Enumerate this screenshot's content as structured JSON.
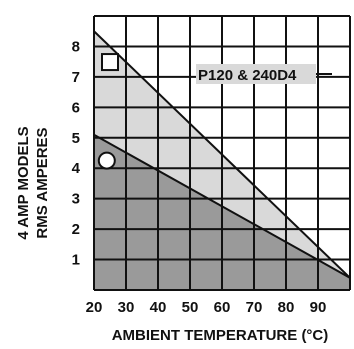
{
  "chart_data": {
    "type": "area",
    "xlabel": "AMBIENT TEMPERATURE (°C)",
    "ylabel_lines": [
      "4 AMP MODELS",
      "RMS AMPERES"
    ],
    "x_ticks": [
      "20",
      "30",
      "40",
      "50",
      "60",
      "70",
      "80",
      "90"
    ],
    "y_ticks": [
      "1",
      "2",
      "3",
      "4",
      "5",
      "6",
      "7",
      "8"
    ],
    "xlim": [
      20,
      100
    ],
    "ylim": [
      0,
      9
    ],
    "grid": true,
    "annotation": "P120 & 240D4",
    "series": [
      {
        "marker": "square",
        "x": [
          20,
          100
        ],
        "y": [
          8.5,
          0.4
        ],
        "fill": "#d9d9d9"
      },
      {
        "marker": "circle",
        "x": [
          20,
          100
        ],
        "y": [
          5.1,
          0.4
        ],
        "fill": "#9a9a9a"
      }
    ],
    "colors": {
      "grid": "#111111",
      "text": "#111111"
    }
  }
}
